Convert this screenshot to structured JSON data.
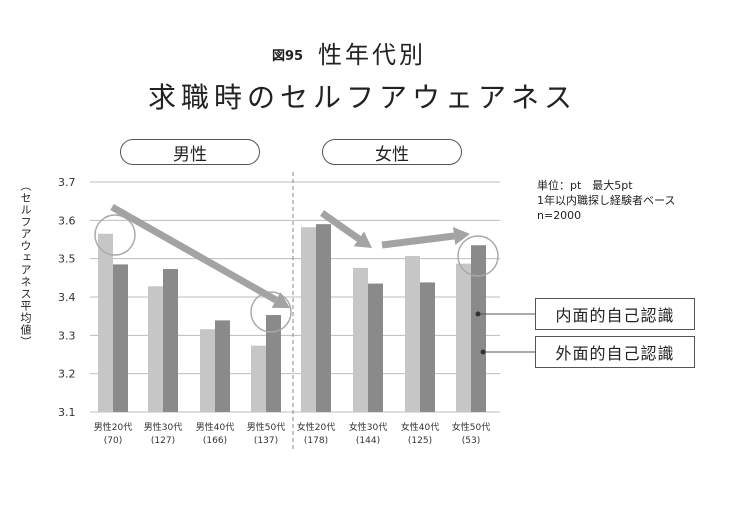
{
  "figure_number": "図95",
  "title_line1": "性年代別",
  "title_line2": "求職時のセルフアウェアネス",
  "group_labels": {
    "male": "男性",
    "female": "女性"
  },
  "notes": [
    "単位：pt　最大5pt",
    "1年以内職探し経験者ベース",
    "n=2000"
  ],
  "colors": {
    "inner": "#c6c6c6",
    "outer": "#8a8a8a",
    "arrow": "#a3a3a3",
    "grid": "#bdbdbd"
  },
  "chart_data": {
    "type": "bar",
    "ylabel": "（セルフアウェアネス平均値）",
    "ylim": [
      3.1,
      3.7
    ],
    "yticks": [
      "3.1",
      "3.2",
      "3.3",
      "3.4",
      "3.5",
      "3.6",
      "3.7"
    ],
    "categories": [
      "男性20代",
      "男性30代",
      "男性40代",
      "男性50代",
      "女性20代",
      "女性30代",
      "女性40代",
      "女性50代"
    ],
    "counts": [
      "(70)",
      "(127)",
      "(166)",
      "(137)",
      "(178)",
      "(144)",
      "(125)",
      "(53)"
    ],
    "series": [
      {
        "name": "内面的自己認識",
        "values": [
          3.565,
          3.428,
          3.316,
          3.273,
          3.582,
          3.476,
          3.507,
          3.487
        ]
      },
      {
        "name": "外面的自己認識",
        "values": [
          3.485,
          3.473,
          3.339,
          3.353,
          3.59,
          3.435,
          3.438,
          3.535
        ]
      }
    ],
    "legend_position": "right",
    "grid": true
  }
}
